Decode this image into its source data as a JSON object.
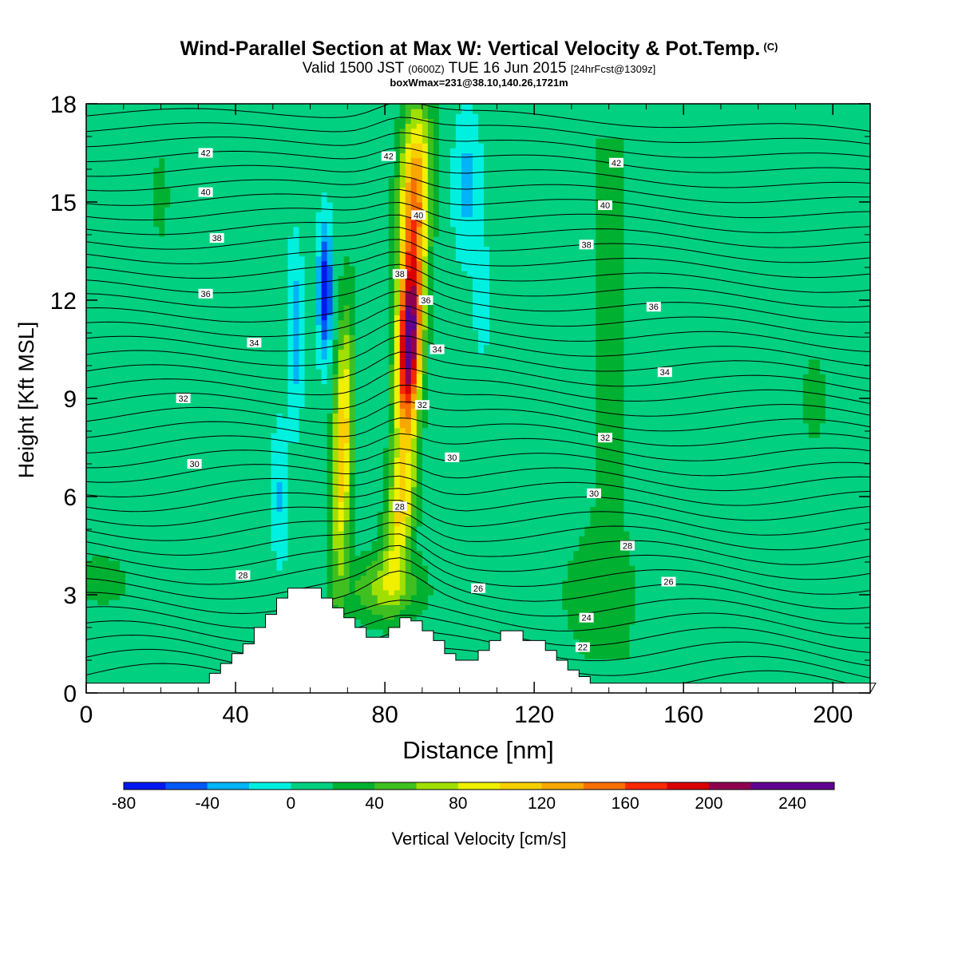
{
  "header": {
    "title": "Wind-Parallel Section at Max W: Vertical Velocity & Pot.Temp.",
    "title_mark": "(C)",
    "valid_prefix": "Valid 1500 JST",
    "valid_utc": "(0600Z)",
    "valid_date": "TUE 16 Jun 2015",
    "forecast": "[24hrFcst@1309z]",
    "boxwmax": "boxWmax=231@38.10,140.26,1721m"
  },
  "chart_data": {
    "type": "heatmap",
    "xlabel": "Distance [nm]",
    "ylabel": "Height [Kft MSL]",
    "xlim": [
      0,
      210
    ],
    "ylim": [
      0,
      18
    ],
    "x_ticks": [
      "0",
      "40",
      "80",
      "120",
      "160",
      "200"
    ],
    "y_ticks": [
      "0",
      "3",
      "6",
      "9",
      "12",
      "15",
      "18"
    ],
    "colorbar": {
      "label": "Vertical Velocity [cm/s]",
      "levels": [
        -80,
        -60,
        -40,
        -20,
        0,
        20,
        40,
        60,
        80,
        100,
        120,
        140,
        160,
        180,
        200,
        220,
        240,
        260
      ],
      "tick_labels": [
        "-80",
        "-40",
        "0",
        "40",
        "80",
        "120",
        "160",
        "200",
        "240"
      ],
      "colors": [
        "#0018f0",
        "#0058f8",
        "#00b4f8",
        "#00f0e0",
        "#00d080",
        "#00b030",
        "#40c020",
        "#a0e000",
        "#f0f000",
        "#f8d000",
        "#f8a800",
        "#f87000",
        "#f82800",
        "#d80000",
        "#900050",
        "#600090",
        "#600090"
      ]
    },
    "theta_contours": {
      "units": "K",
      "labels": [
        {
          "text": "42",
          "x": 32,
          "y": 16.5
        },
        {
          "text": "42",
          "x": 81,
          "y": 16.4
        },
        {
          "text": "42",
          "x": 142,
          "y": 16.2
        },
        {
          "text": "40",
          "x": 32,
          "y": 15.3
        },
        {
          "text": "40",
          "x": 89,
          "y": 14.6
        },
        {
          "text": "40",
          "x": 139,
          "y": 14.9
        },
        {
          "text": "38",
          "x": 35,
          "y": 13.9
        },
        {
          "text": "38",
          "x": 84,
          "y": 12.8
        },
        {
          "text": "38",
          "x": 134,
          "y": 13.7
        },
        {
          "text": "36",
          "x": 32,
          "y": 12.2
        },
        {
          "text": "36",
          "x": 91,
          "y": 12.0
        },
        {
          "text": "36",
          "x": 152,
          "y": 11.8
        },
        {
          "text": "34",
          "x": 45,
          "y": 10.7
        },
        {
          "text": "34",
          "x": 94,
          "y": 10.5
        },
        {
          "text": "34",
          "x": 155,
          "y": 9.8
        },
        {
          "text": "32",
          "x": 26,
          "y": 9.0
        },
        {
          "text": "32",
          "x": 90,
          "y": 8.8
        },
        {
          "text": "32",
          "x": 139,
          "y": 7.8
        },
        {
          "text": "30",
          "x": 29,
          "y": 7.0
        },
        {
          "text": "30",
          "x": 98,
          "y": 7.2
        },
        {
          "text": "30",
          "x": 136,
          "y": 6.1
        },
        {
          "text": "28",
          "x": 42,
          "y": 3.6
        },
        {
          "text": "28",
          "x": 84,
          "y": 5.7
        },
        {
          "text": "28",
          "x": 145,
          "y": 4.5
        },
        {
          "text": "26",
          "x": 105,
          "y": 3.2
        },
        {
          "text": "26",
          "x": 156,
          "y": 3.4
        },
        {
          "text": "24",
          "x": 134,
          "y": 2.3
        },
        {
          "text": "22",
          "x": 133,
          "y": 1.4
        }
      ]
    },
    "terrain": {
      "units": "Kft",
      "x": [
        35,
        38,
        41,
        44,
        47,
        50,
        53,
        56,
        59,
        62,
        65,
        68,
        71,
        74,
        77,
        80,
        83,
        86,
        89,
        92,
        95,
        98,
        101,
        104,
        107,
        110,
        113,
        116,
        119,
        122,
        125,
        128,
        131,
        134
      ],
      "height": [
        0.6,
        0.9,
        1.2,
        1.5,
        2.0,
        2.4,
        2.9,
        3.2,
        3.2,
        3.2,
        2.9,
        2.6,
        2.3,
        2.0,
        1.7,
        1.7,
        2.0,
        2.3,
        2.2,
        1.9,
        1.6,
        1.2,
        1.0,
        1.0,
        1.3,
        1.6,
        1.9,
        1.9,
        1.6,
        1.6,
        1.3,
        1.0,
        0.7,
        0.5
      ]
    },
    "updraft_cores": [
      {
        "x": 69,
        "y_range": [
          3,
          12
        ],
        "peak_cm_s": 110
      },
      {
        "x": 86,
        "y_range": [
          3,
          18
        ],
        "peak_cm_s": 231
      }
    ],
    "downdraft_core": {
      "x": 64,
      "y_range": [
        9,
        15
      ],
      "min_cm_s": -80
    }
  }
}
